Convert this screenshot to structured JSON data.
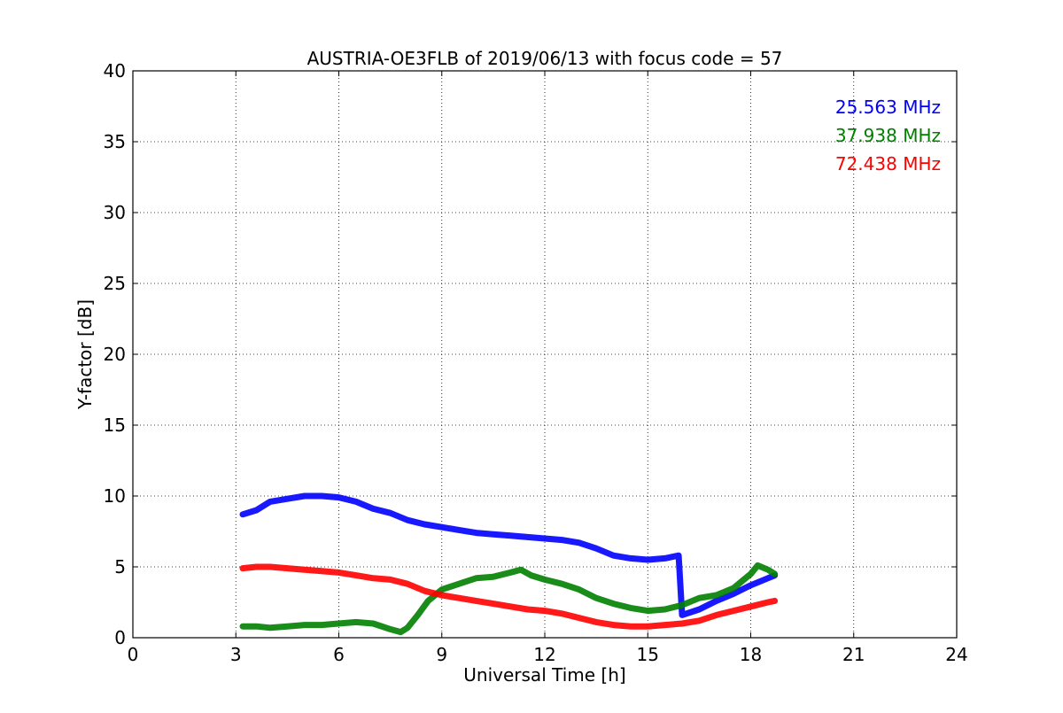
{
  "chart_data": {
    "type": "line",
    "title": "AUSTRIA-OE3FLB of 2019/06/13 with focus code = 57",
    "xlabel": "Universal Time [h]",
    "ylabel": "Y-factor [dB]",
    "xlim": [
      0,
      24
    ],
    "ylim": [
      0,
      40
    ],
    "xticks": [
      0,
      3,
      6,
      9,
      12,
      15,
      18,
      21,
      24
    ],
    "yticks": [
      0,
      5,
      10,
      15,
      20,
      25,
      30,
      35,
      40
    ],
    "x_tick_labels": [
      "0",
      "3",
      "6",
      "9",
      "12",
      "15",
      "18",
      "21",
      "24"
    ],
    "y_tick_labels": [
      "0",
      "5",
      "10",
      "15",
      "20",
      "25",
      "30",
      "35",
      "40"
    ],
    "grid": true,
    "legend_position": "top-right",
    "series": [
      {
        "name": "25.563 MHz",
        "color": "#0000ff",
        "x": [
          3.2,
          3.6,
          4.0,
          4.5,
          5.0,
          5.5,
          6.0,
          6.5,
          7.0,
          7.5,
          8.0,
          8.5,
          9.0,
          9.5,
          10.0,
          10.5,
          11.0,
          11.5,
          12.0,
          12.5,
          13.0,
          13.5,
          14.0,
          14.5,
          15.0,
          15.5,
          15.9,
          16.0,
          16.5,
          17.0,
          17.5,
          18.0,
          18.5,
          18.7
        ],
        "y": [
          8.7,
          9.0,
          9.6,
          9.8,
          10.0,
          10.0,
          9.9,
          9.6,
          9.1,
          8.8,
          8.3,
          8.0,
          7.8,
          7.6,
          7.4,
          7.3,
          7.2,
          7.1,
          7.0,
          6.9,
          6.7,
          6.3,
          5.8,
          5.6,
          5.5,
          5.6,
          5.8,
          1.6,
          2.0,
          2.6,
          3.1,
          3.7,
          4.2,
          4.4
        ]
      },
      {
        "name": "37.938 MHz",
        "color": "#008000",
        "x": [
          3.2,
          3.6,
          4.0,
          4.5,
          5.0,
          5.5,
          6.0,
          6.5,
          7.0,
          7.5,
          7.8,
          8.0,
          8.3,
          8.6,
          9.0,
          9.5,
          10.0,
          10.5,
          11.0,
          11.3,
          11.6,
          12.0,
          12.5,
          13.0,
          13.5,
          14.0,
          14.5,
          15.0,
          15.5,
          16.0,
          16.5,
          17.0,
          17.5,
          18.0,
          18.2,
          18.5,
          18.7
        ],
        "y": [
          0.8,
          0.8,
          0.7,
          0.8,
          0.9,
          0.9,
          1.0,
          1.1,
          1.0,
          0.6,
          0.4,
          0.7,
          1.6,
          2.6,
          3.4,
          3.8,
          4.2,
          4.3,
          4.6,
          4.8,
          4.4,
          4.1,
          3.8,
          3.4,
          2.8,
          2.4,
          2.1,
          1.9,
          2.0,
          2.3,
          2.8,
          3.0,
          3.5,
          4.5,
          5.1,
          4.8,
          4.5
        ]
      },
      {
        "name": "72.438 MHz",
        "color": "#ff0000",
        "x": [
          3.2,
          3.6,
          4.0,
          4.5,
          5.0,
          5.5,
          6.0,
          6.5,
          7.0,
          7.5,
          8.0,
          8.5,
          9.0,
          9.5,
          10.0,
          10.5,
          11.0,
          11.5,
          12.0,
          12.5,
          13.0,
          13.5,
          14.0,
          14.5,
          15.0,
          15.5,
          16.0,
          16.5,
          17.0,
          17.5,
          18.0,
          18.5,
          18.7
        ],
        "y": [
          4.9,
          5.0,
          5.0,
          4.9,
          4.8,
          4.7,
          4.6,
          4.4,
          4.2,
          4.1,
          3.8,
          3.3,
          3.0,
          2.8,
          2.6,
          2.4,
          2.2,
          2.0,
          1.9,
          1.7,
          1.4,
          1.1,
          0.9,
          0.8,
          0.8,
          0.9,
          1.0,
          1.2,
          1.6,
          1.9,
          2.2,
          2.5,
          2.6
        ]
      }
    ]
  }
}
